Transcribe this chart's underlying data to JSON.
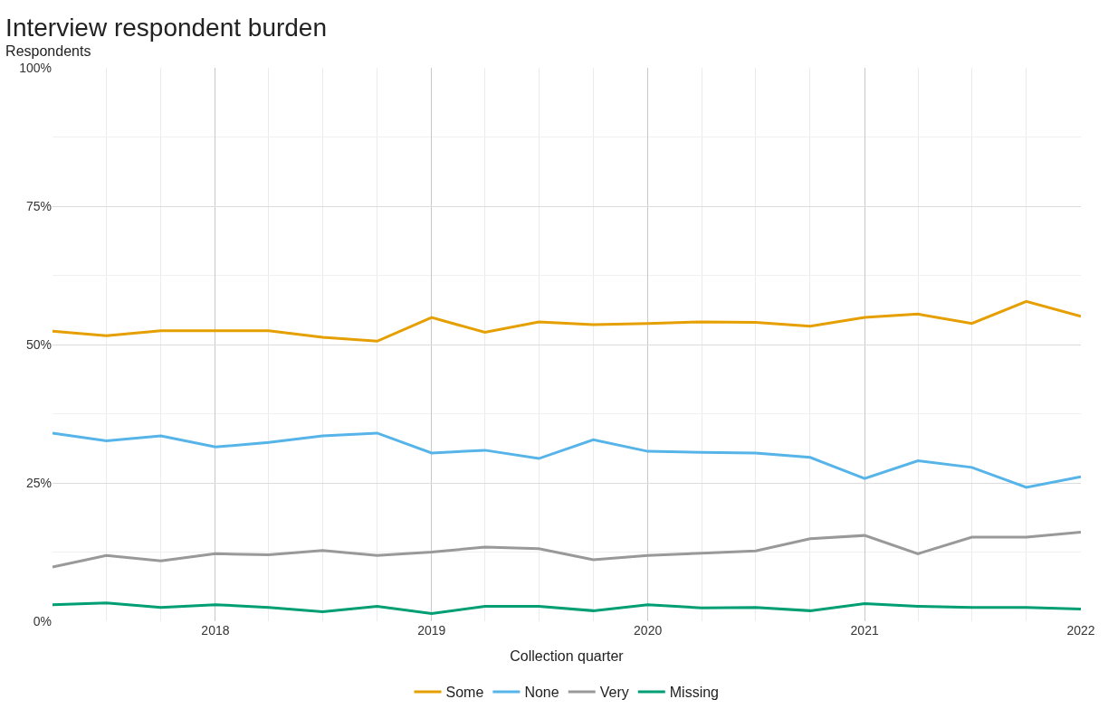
{
  "chart_data": {
    "type": "line",
    "title": "Interview respondent burden",
    "subtitle": "Respondents",
    "xlabel": "Collection quarter",
    "x": [
      "2017-04",
      "2017-07",
      "2017-10",
      "2018-01",
      "2018-04",
      "2018-07",
      "2018-10",
      "2019-01",
      "2019-04",
      "2019-07",
      "2019-10",
      "2020-01",
      "2020-04",
      "2020-07",
      "2020-10",
      "2021-01",
      "2021-04",
      "2021-07",
      "2021-10",
      "2022-01"
    ],
    "xlim": [
      "2017-04",
      "2022-01"
    ],
    "xticks": [
      "2018",
      "2019",
      "2020",
      "2021",
      "2022"
    ],
    "ylim": [
      0,
      100
    ],
    "yticks": [
      {
        "value": 0,
        "label": "0%"
      },
      {
        "value": 25,
        "label": "25%"
      },
      {
        "value": 50,
        "label": "50%"
      },
      {
        "value": 75,
        "label": "75%"
      },
      {
        "value": 100,
        "label": "100%"
      }
    ],
    "grid": true,
    "legend": "bottom",
    "marker": "none",
    "line_style": "solid",
    "series": [
      {
        "name": "Some",
        "color": "#e69f00",
        "values": [
          52.4,
          51.6,
          52.5,
          52.5,
          52.5,
          51.3,
          50.6,
          54.9,
          52.2,
          54.1,
          53.6,
          53.8,
          54.1,
          54.0,
          53.3,
          54.9,
          55.5,
          53.8,
          57.8,
          55.1
        ]
      },
      {
        "name": "None",
        "color": "#56b4e9",
        "values": [
          34.0,
          32.6,
          33.5,
          31.5,
          32.3,
          33.5,
          34.0,
          30.4,
          30.9,
          29.4,
          32.8,
          30.7,
          30.5,
          30.4,
          29.6,
          25.8,
          29.0,
          27.8,
          24.2,
          26.1
        ]
      },
      {
        "name": "Very",
        "color": "#999999",
        "values": [
          9.8,
          11.9,
          10.9,
          12.2,
          12.0,
          12.8,
          11.9,
          12.5,
          13.4,
          13.1,
          11.1,
          11.9,
          12.3,
          12.7,
          14.9,
          15.5,
          12.2,
          15.2,
          15.2,
          16.1
        ]
      },
      {
        "name": "Missing",
        "color": "#009e73",
        "values": [
          3.0,
          3.3,
          2.5,
          3.0,
          2.5,
          1.7,
          2.7,
          1.4,
          2.7,
          2.7,
          1.9,
          3.0,
          2.4,
          2.5,
          1.9,
          3.2,
          2.7,
          2.5,
          2.5,
          2.2
        ]
      }
    ]
  }
}
